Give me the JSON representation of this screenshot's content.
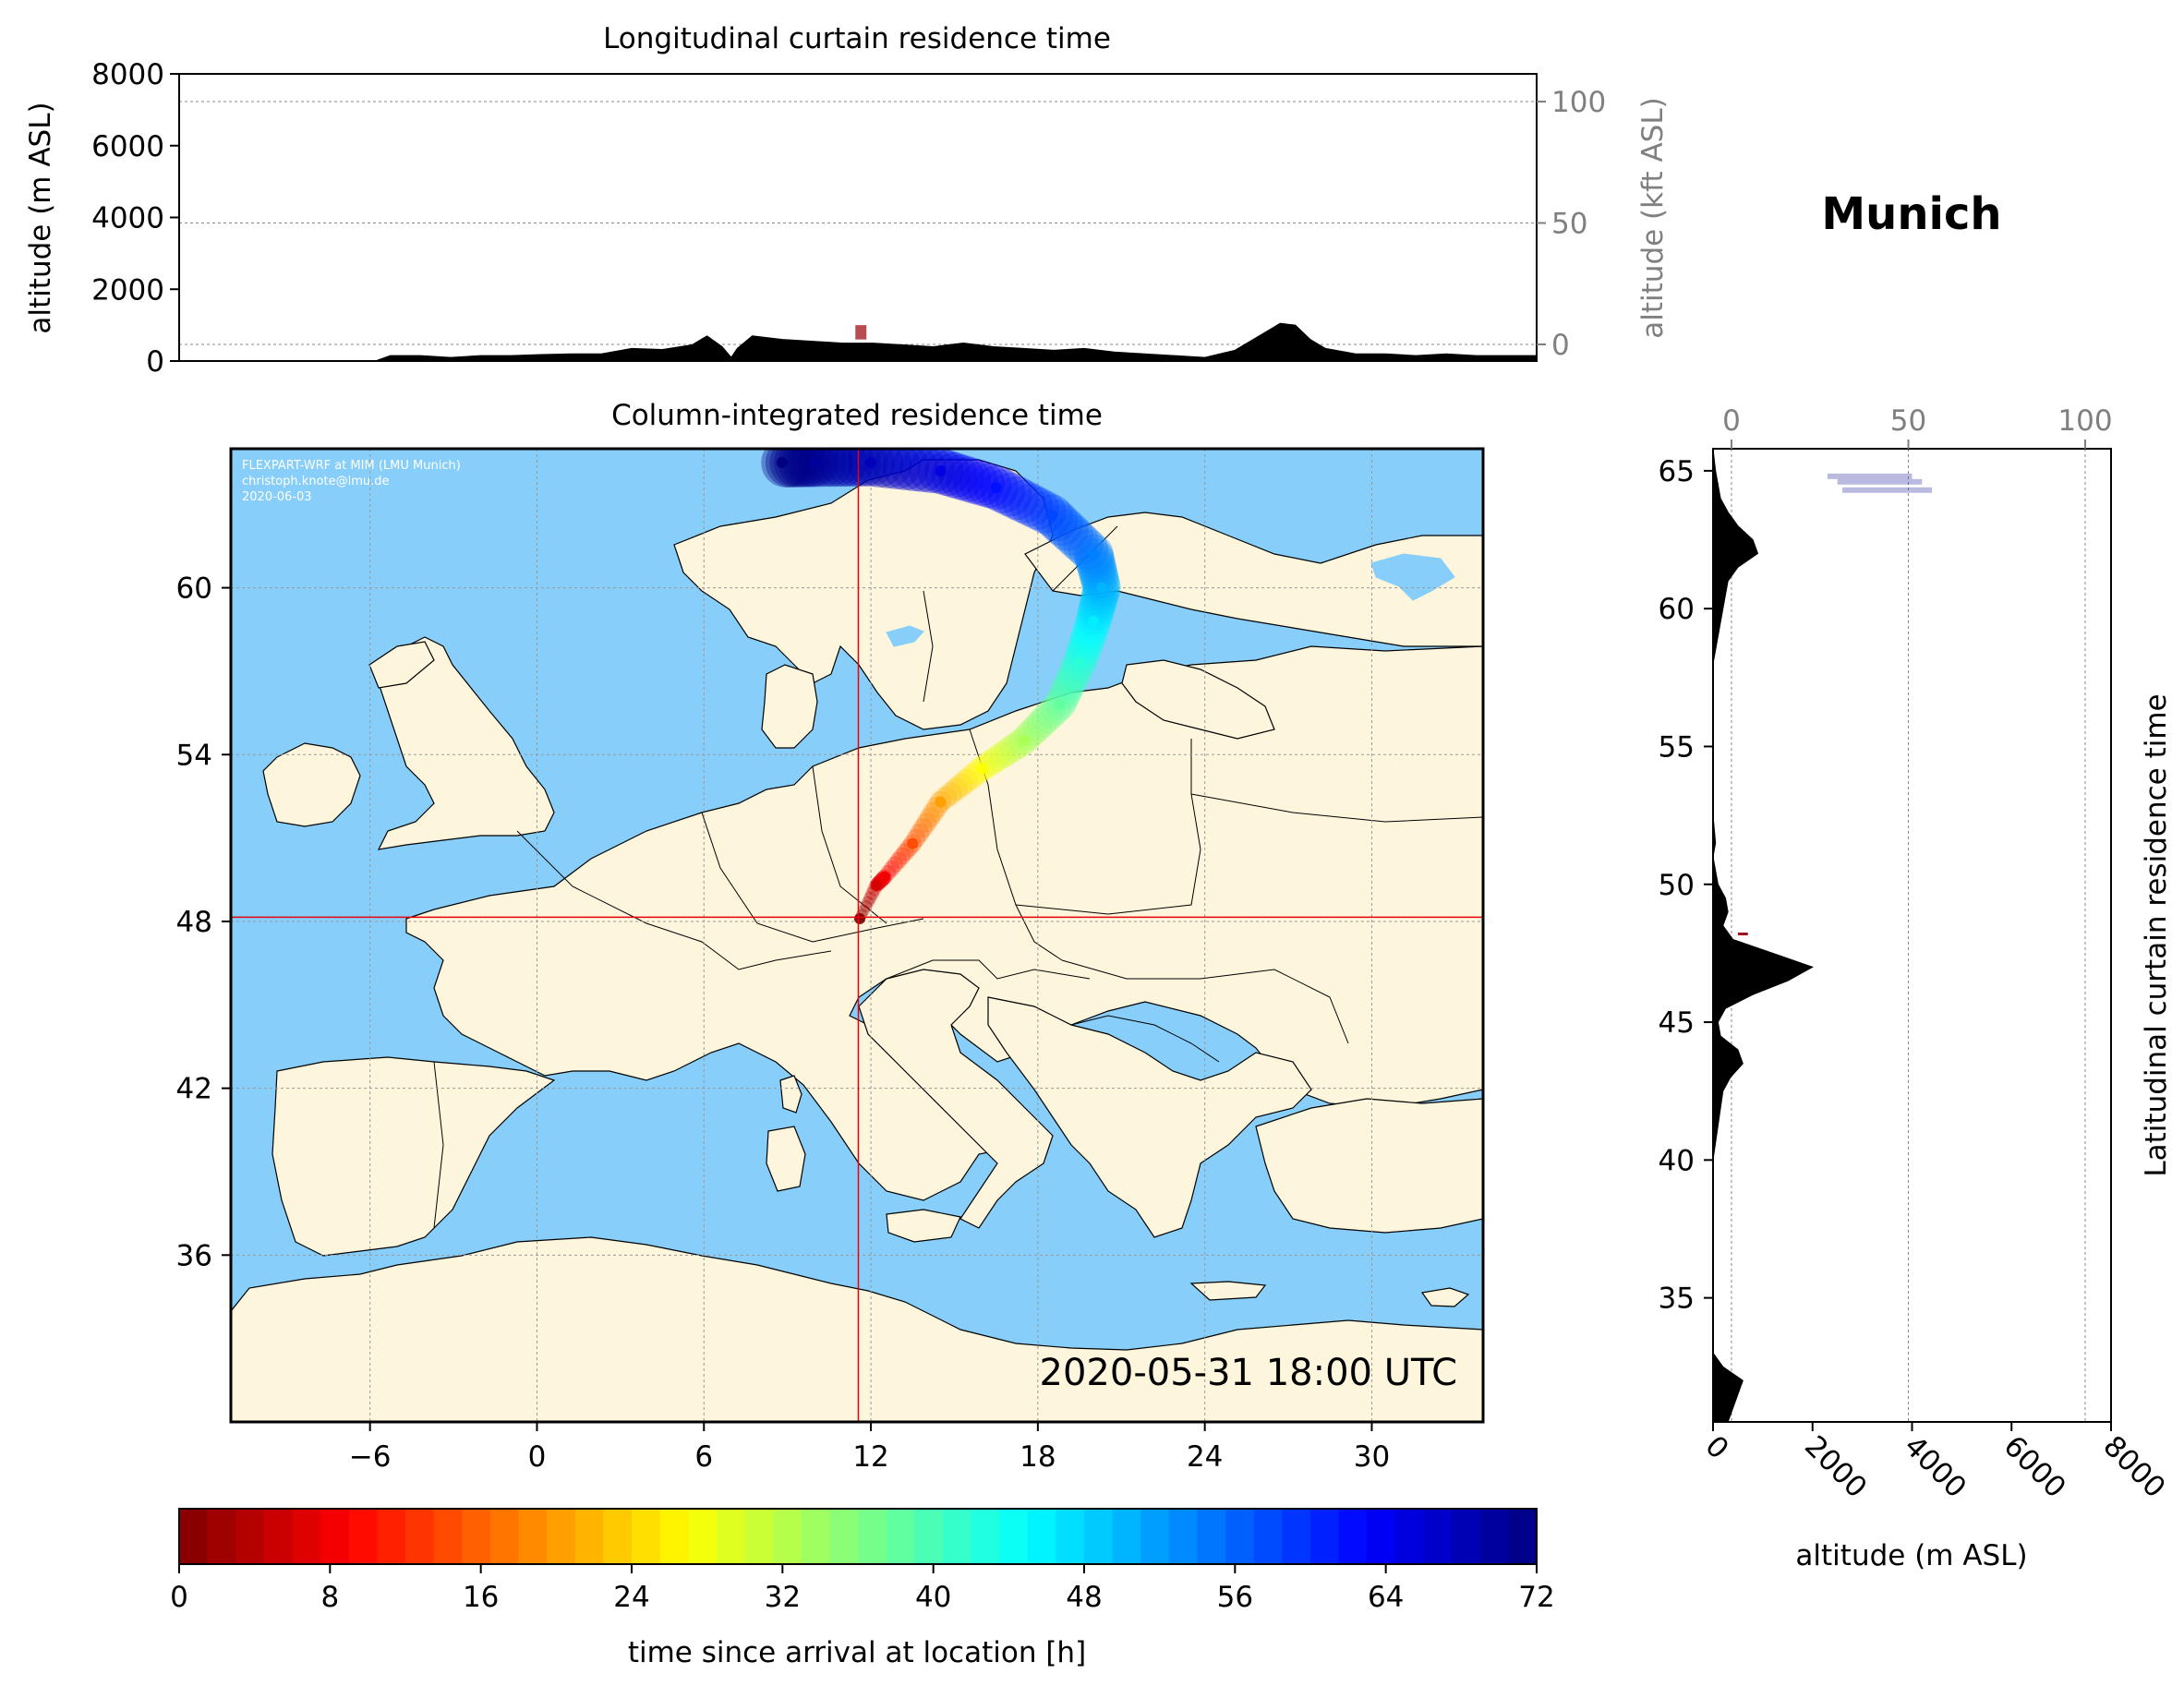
{
  "location": "Munich",
  "colors": {
    "ocean": "#87cefa",
    "land": "#fdf5dc",
    "crosshair": "#e8000b",
    "terrain": "#000000",
    "secondary_axis": "#808080"
  },
  "chart_data": [
    {
      "type": "area",
      "title": "Longitudinal curtain residence time",
      "ylabel": "altitude (m ASL)",
      "ylabel_right": "altitude (kft ASL)",
      "ylim": [
        0,
        8000
      ],
      "yticks": [
        "0",
        "2000",
        "4000",
        "6000",
        "8000"
      ],
      "ylim_right": [
        0,
        100
      ],
      "yticks_right": [
        "0",
        "50",
        "100"
      ],
      "xlim": [
        -11,
        34
      ],
      "terrain_profile": {
        "x": [
          -11,
          -4.5,
          -4,
          -3,
          -2,
          -1,
          0,
          1,
          2,
          3,
          4,
          5,
          6,
          6.5,
          7,
          7.3,
          7.5,
          8,
          9,
          10,
          11,
          12,
          13,
          14,
          15,
          16,
          17,
          18,
          19,
          20,
          21,
          22,
          23,
          24,
          25,
          25.5,
          26,
          26.5,
          27,
          28,
          29,
          30,
          31,
          32,
          33,
          34
        ],
        "y": [
          0,
          0,
          150,
          150,
          100,
          150,
          150,
          180,
          200,
          200,
          350,
          320,
          450,
          700,
          400,
          100,
          350,
          700,
          600,
          550,
          500,
          500,
          450,
          400,
          500,
          400,
          350,
          300,
          350,
          250,
          200,
          150,
          100,
          300,
          800,
          1050,
          1000,
          600,
          350,
          200,
          200,
          150,
          200,
          150,
          150,
          150
        ]
      },
      "residence_marker": {
        "x": 11.6,
        "altitude": [
          600,
          1000
        ]
      }
    },
    {
      "type": "heatmap",
      "title": "Column-integrated residence time",
      "xlim": [
        -11,
        34
      ],
      "ylim": [
        30,
        65
      ],
      "xticks": [
        "−6",
        "0",
        "6",
        "12",
        "18",
        "24",
        "30"
      ],
      "yticks": [
        "36",
        "42",
        "48",
        "54",
        "60"
      ],
      "gridlines": true,
      "station": {
        "name": "Munich",
        "lon": 11.55,
        "lat": 48.15
      },
      "plume_trajectory": {
        "lon": [
          11.6,
          12.2,
          12.5,
          13.5,
          14.5,
          16,
          17.5,
          18.8,
          19.5,
          20.0,
          20.3,
          20.0,
          18.5,
          16.5,
          14.5,
          12.0,
          10.0,
          8.8
        ],
        "lat": [
          48.1,
          49.3,
          49.6,
          50.8,
          52.3,
          53.5,
          54.5,
          55.8,
          57.3,
          58.8,
          60.0,
          61.2,
          62.6,
          63.6,
          64.2,
          64.5,
          64.5,
          64.5
        ],
        "hours": [
          0,
          6,
          8,
          14,
          20,
          27,
          33,
          38,
          42,
          46,
          50,
          54,
          58,
          62,
          65,
          68,
          70,
          72
        ]
      },
      "annotation_credit": [
        "FLEXPART-WRF at MIM (LMU Munich)",
        "christoph.knote@lmu.de",
        "2020-06-03"
      ],
      "annotation_time": "2020-05-31 18:00 UTC"
    },
    {
      "type": "area",
      "title": "Latitudinal curtain residence time",
      "xlabel": "altitude (m ASL)",
      "xlim": [
        0,
        8000
      ],
      "xticks": [
        "0",
        "2000",
        "4000",
        "6000",
        "8000"
      ],
      "xlim_top": [
        0,
        100
      ],
      "xticks_top": [
        "0",
        "50",
        "100"
      ],
      "ylim": [
        30.5,
        65.8
      ],
      "yticks": [
        "35",
        "40",
        "45",
        "50",
        "55",
        "60",
        "65"
      ],
      "terrain_profile": {
        "lat": [
          30.5,
          31.5,
          32,
          32.5,
          33,
          40,
          42.5,
          43,
          43.5,
          44,
          44.5,
          45,
          45.5,
          46,
          46.5,
          47,
          47.5,
          48,
          48.5,
          49,
          49.5,
          50,
          51,
          51.5,
          52.5,
          58,
          59,
          60,
          61,
          61.5,
          62,
          62.5,
          63,
          63.5,
          64,
          65,
          65.8
        ],
        "alt": [
          300,
          500,
          600,
          200,
          0,
          0,
          200,
          350,
          600,
          500,
          150,
          100,
          250,
          800,
          1500,
          2000,
          1200,
          400,
          200,
          300,
          250,
          100,
          0,
          50,
          0,
          0,
          100,
          200,
          300,
          500,
          900,
          800,
          500,
          300,
          150,
          50,
          0
        ]
      },
      "residence_marker": {
        "lat": 48.2,
        "altitude": [
          500,
          700
        ]
      },
      "upper_marks": [
        {
          "lat": 64.8,
          "altitude": [
            2300,
            4000
          ]
        },
        {
          "lat": 64.6,
          "altitude": [
            2500,
            4200
          ]
        },
        {
          "lat": 64.3,
          "altitude": [
            2600,
            4400
          ]
        }
      ]
    }
  ],
  "colorbar": {
    "label": "time since arrival at location [h]",
    "min": 0,
    "max": 72,
    "ticks": [
      "0",
      "8",
      "16",
      "24",
      "32",
      "40",
      "48",
      "56",
      "64",
      "72"
    ],
    "colormap": "jet_r"
  }
}
